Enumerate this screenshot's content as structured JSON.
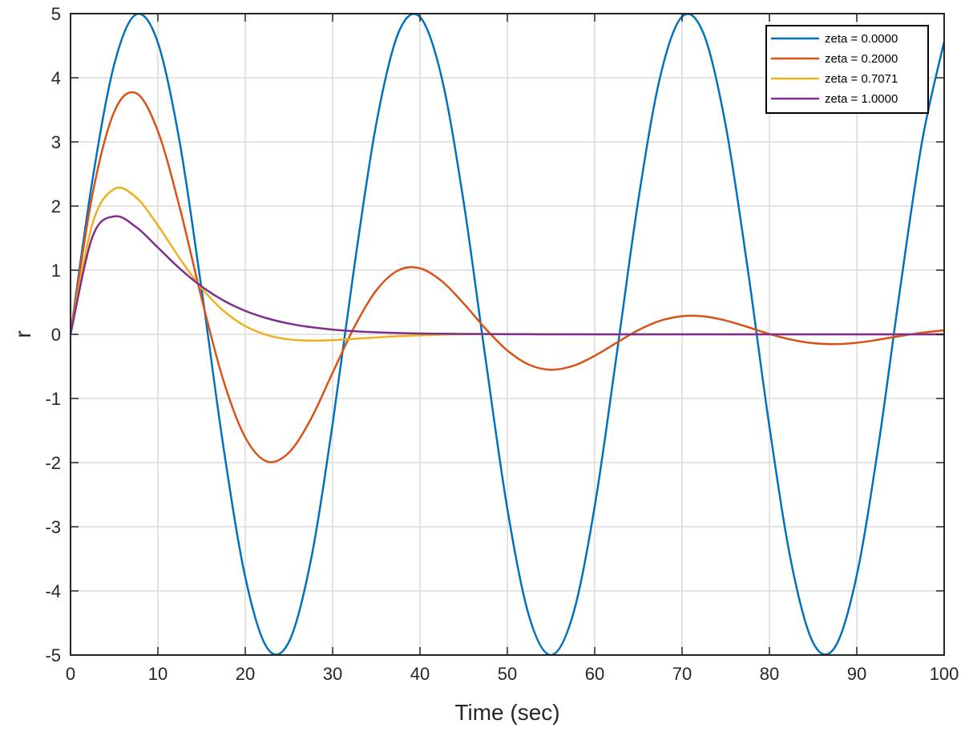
{
  "chart_data": {
    "type": "line",
    "title": "",
    "xlabel": "Time (sec)",
    "ylabel": "r",
    "xlim": [
      0,
      100
    ],
    "ylim": [
      -5,
      5
    ],
    "xticks": [
      "0",
      "10",
      "20",
      "30",
      "40",
      "50",
      "60",
      "70",
      "80",
      "90",
      "100"
    ],
    "yticks": [
      "-5",
      "-4",
      "-3",
      "-2",
      "-1",
      "0",
      "1",
      "2",
      "3",
      "4",
      "5"
    ],
    "grid": true,
    "legend_position": "top-right",
    "x": [
      0,
      2.5,
      5,
      7.5,
      10,
      12.5,
      15,
      17.5,
      20,
      22.5,
      25,
      27.5,
      30,
      32.5,
      35,
      37.5,
      40,
      42.5,
      45,
      47.5,
      50,
      52.5,
      55,
      57.5,
      60,
      62.5,
      65,
      67.5,
      70,
      72.5,
      75,
      77.5,
      80,
      82.5,
      85,
      87.5,
      90,
      92.5,
      95,
      97.5,
      100
    ],
    "series": [
      {
        "name": "zeta = 0.0000",
        "color": "#0072BD",
        "values": [
          0,
          2.397,
          4.207,
          4.987,
          4.546,
          2.992,
          0.706,
          -1.754,
          -3.784,
          -4.888,
          -4.795,
          -3.528,
          -1.397,
          1.075,
          3.285,
          4.69,
          4.947,
          3.993,
          2.061,
          -0.376,
          -2.72,
          -4.399,
          -5.0,
          -4.377,
          -2.683,
          -0.332,
          2.101,
          4.019,
          4.953,
          4.675,
          3.251,
          1.033,
          -1.44,
          -3.559,
          -4.807,
          -4.878,
          -3.755,
          -1.712,
          0.75,
          3.027,
          4.565
        ]
      },
      {
        "name": "zeta = 0.2000",
        "color": "#D95319",
        "values": [
          0,
          2.173,
          3.468,
          3.761,
          3.166,
          1.975,
          0.562,
          -0.72,
          -1.607,
          -1.983,
          -1.844,
          -1.323,
          -0.6,
          0.119,
          0.685,
          0.996,
          1.03,
          0.829,
          0.481,
          0.089,
          -0.252,
          -0.475,
          -0.552,
          -0.493,
          -0.335,
          -0.132,
          0.065,
          0.211,
          0.283,
          0.28,
          0.215,
          0.114,
          0.006,
          -0.083,
          -0.138,
          -0.153,
          -0.131,
          -0.083,
          -0.026,
          0.026,
          0.063
        ]
      },
      {
        "name": "zeta = 0.7071",
        "color": "#EDB120",
        "values": [
          0,
          1.719,
          2.265,
          2.136,
          1.698,
          1.184,
          0.723,
          0.368,
          0.129,
          -0.012,
          -0.079,
          -0.098,
          -0.091,
          -0.071,
          -0.049,
          -0.029,
          -0.015,
          -0.005,
          0.001,
          0.004,
          0.004,
          0.004,
          0.003,
          0.002,
          0,
          0,
          0,
          0,
          0,
          0,
          0,
          0,
          0,
          0,
          0,
          0,
          0,
          0,
          0,
          0,
          0
        ]
      },
      {
        "name": "zeta = 1.0000",
        "color": "#7E2F8E",
        "values": [
          0,
          1.516,
          1.839,
          1.673,
          1.353,
          1.026,
          0.747,
          0.528,
          0.366,
          0.25,
          0.168,
          0.112,
          0.074,
          0.049,
          0.032,
          0.021,
          0.013,
          0.009,
          0.006,
          0.004,
          0.002,
          0.001,
          0,
          0,
          0,
          0,
          0,
          0,
          0,
          0,
          0,
          0,
          0,
          0,
          0,
          0,
          0,
          0,
          0,
          0,
          0
        ]
      }
    ]
  }
}
